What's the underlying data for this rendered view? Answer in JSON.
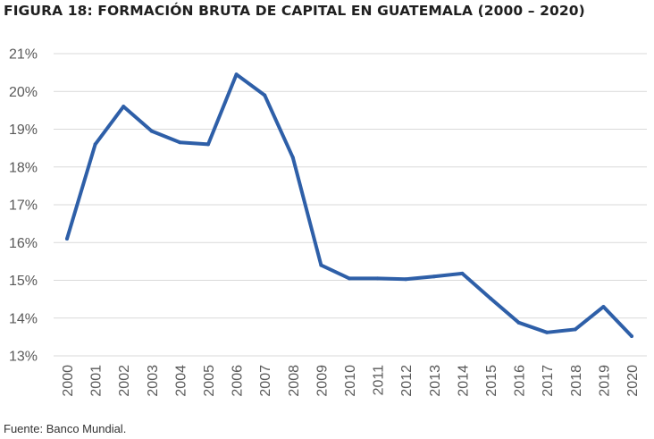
{
  "title": "FIGURA 18: FORMACIÓN BRUTA DE CAPITAL EN GUATEMALA (2000 – 2020)",
  "source": "Fuente: Banco Mundial.",
  "colors": {
    "line": "#2E5FA8",
    "grid": "#D9D9D9",
    "tick_text": "#595959"
  },
  "chart_data": {
    "type": "line",
    "title": "FIGURA 18: FORMACIÓN BRUTA DE CAPITAL EN GUATEMALA (2000 – 2020)",
    "xlabel": "",
    "ylabel": "",
    "categories": [
      "2000",
      "2001",
      "2002",
      "2003",
      "2004",
      "2005",
      "2006",
      "2007",
      "2008",
      "2009",
      "2010",
      "2011",
      "2012",
      "2013",
      "2014",
      "2015",
      "2016",
      "2017",
      "2018",
      "2019",
      "2020"
    ],
    "series": [
      {
        "values": [
          16.1,
          18.6,
          19.6,
          18.95,
          18.65,
          18.6,
          20.45,
          19.9,
          18.25,
          15.4,
          15.05,
          15.05,
          15.03,
          15.1,
          15.18,
          14.52,
          13.88,
          13.62,
          13.7,
          14.3,
          13.52
        ]
      }
    ],
    "ylim": [
      13,
      21
    ],
    "yticks": [
      13,
      14,
      15,
      16,
      17,
      18,
      19,
      20,
      21
    ],
    "ytick_labels": [
      "13%",
      "14%",
      "15%",
      "16%",
      "17%",
      "18%",
      "19%",
      "20%",
      "21%"
    ],
    "grid": true,
    "legend": "none"
  }
}
